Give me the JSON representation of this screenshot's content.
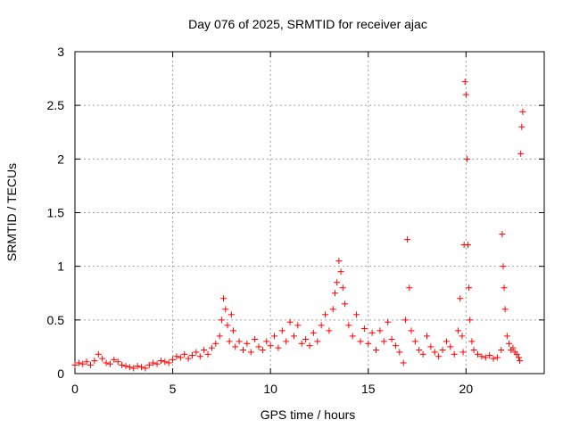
{
  "chart_data": {
    "type": "scatter",
    "title": "Day 076 of 2025, SRMTID for receiver ajac",
    "xlabel": "GPS time / hours",
    "ylabel": "SRMTID / TECUs",
    "xlim": [
      0,
      24
    ],
    "ylim": [
      0,
      3
    ],
    "xticks": [
      0,
      5,
      10,
      15,
      20
    ],
    "xtick_labels": [
      "0",
      "5",
      "10",
      "15",
      "20"
    ],
    "yticks": [
      0,
      0.5,
      1,
      1.5,
      2,
      2.5,
      3
    ],
    "ytick_labels": [
      "0",
      "0.5",
      "1",
      "1.5",
      "2",
      "2.5",
      "3"
    ],
    "grid": true,
    "marker": "+",
    "series": [
      {
        "name": "SRMTID",
        "color": "#ff0000",
        "x": [
          0.0,
          0.2,
          0.4,
          0.6,
          0.8,
          1.0,
          1.2,
          1.4,
          1.6,
          1.8,
          2.0,
          2.2,
          2.4,
          2.6,
          2.8,
          3.0,
          3.2,
          3.4,
          3.6,
          3.8,
          4.0,
          4.2,
          4.4,
          4.6,
          4.8,
          5.0,
          5.2,
          5.4,
          5.6,
          5.8,
          6.0,
          6.2,
          6.4,
          6.6,
          6.8,
          7.0,
          7.2,
          7.4,
          7.5,
          7.6,
          7.7,
          7.8,
          7.9,
          8.0,
          8.1,
          8.2,
          8.4,
          8.6,
          8.8,
          9.0,
          9.2,
          9.4,
          9.6,
          9.8,
          10.0,
          10.2,
          10.4,
          10.6,
          10.8,
          11.0,
          11.2,
          11.4,
          11.6,
          11.8,
          12.0,
          12.2,
          12.4,
          12.6,
          12.8,
          13.0,
          13.2,
          13.3,
          13.4,
          13.5,
          13.6,
          13.7,
          13.8,
          14.0,
          14.2,
          14.4,
          14.6,
          14.8,
          15.0,
          15.2,
          15.4,
          15.6,
          15.8,
          16.0,
          16.2,
          16.4,
          16.6,
          16.8,
          16.9,
          17.0,
          17.1,
          17.2,
          17.4,
          17.6,
          17.8,
          18.0,
          18.2,
          18.4,
          18.6,
          18.8,
          19.0,
          19.2,
          19.4,
          19.6,
          19.7,
          19.8,
          19.85,
          19.9,
          19.95,
          20.0,
          20.05,
          20.1,
          20.15,
          20.2,
          20.3,
          20.4,
          20.6,
          20.8,
          21.0,
          21.2,
          21.4,
          21.6,
          21.8,
          21.85,
          21.9,
          21.95,
          22.0,
          22.1,
          22.2,
          22.3,
          22.4,
          22.5,
          22.6,
          22.7,
          22.75,
          22.8,
          22.85,
          22.9
        ],
        "y": [
          0.08,
          0.1,
          0.09,
          0.11,
          0.08,
          0.12,
          0.18,
          0.14,
          0.1,
          0.09,
          0.13,
          0.11,
          0.08,
          0.07,
          0.06,
          0.05,
          0.07,
          0.06,
          0.05,
          0.08,
          0.1,
          0.09,
          0.12,
          0.11,
          0.1,
          0.13,
          0.16,
          0.15,
          0.18,
          0.14,
          0.17,
          0.2,
          0.16,
          0.22,
          0.18,
          0.24,
          0.28,
          0.35,
          0.5,
          0.7,
          0.6,
          0.45,
          0.3,
          0.55,
          0.4,
          0.25,
          0.3,
          0.22,
          0.28,
          0.2,
          0.32,
          0.25,
          0.22,
          0.3,
          0.26,
          0.35,
          0.24,
          0.4,
          0.3,
          0.48,
          0.35,
          0.45,
          0.28,
          0.32,
          0.26,
          0.38,
          0.3,
          0.45,
          0.55,
          0.4,
          0.6,
          0.75,
          0.85,
          1.05,
          0.95,
          0.8,
          0.65,
          0.45,
          0.35,
          0.55,
          0.3,
          0.42,
          0.28,
          0.38,
          0.22,
          0.4,
          0.3,
          0.48,
          0.32,
          0.26,
          0.2,
          0.1,
          0.5,
          1.25,
          0.8,
          0.4,
          0.3,
          0.22,
          0.18,
          0.35,
          0.25,
          0.2,
          0.16,
          0.22,
          0.3,
          0.25,
          0.18,
          0.4,
          0.7,
          0.35,
          0.2,
          1.2,
          2.72,
          2.6,
          2.0,
          1.2,
          0.8,
          0.5,
          0.3,
          0.22,
          0.18,
          0.16,
          0.15,
          0.17,
          0.14,
          0.15,
          0.22,
          1.3,
          1.0,
          0.8,
          0.6,
          0.35,
          0.28,
          0.22,
          0.24,
          0.2,
          0.18,
          0.15,
          0.12,
          2.05,
          2.3,
          2.44
        ]
      }
    ]
  }
}
